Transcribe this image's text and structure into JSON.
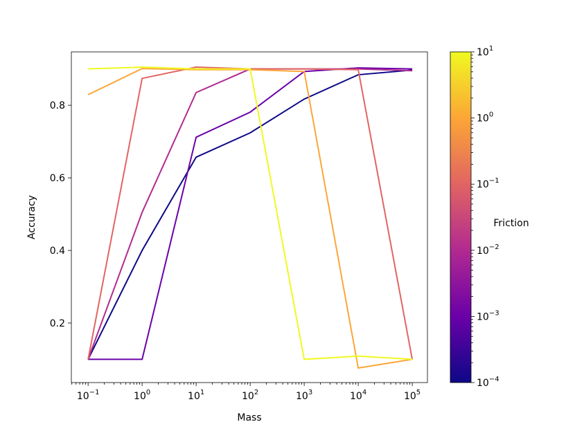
{
  "chart_data": {
    "type": "line",
    "x_label": "Mass",
    "y_label": "Accuracy",
    "x_log": true,
    "x": [
      0.1,
      1,
      10,
      100,
      1000,
      10000,
      100000
    ],
    "series": [
      {
        "color": "#0d0887",
        "values": [
          0.1,
          0.4,
          0.657,
          0.724,
          0.817,
          0.884,
          0.897
        ]
      },
      {
        "color": "#6a00a8",
        "values": [
          0.1,
          0.1,
          0.712,
          0.781,
          0.893,
          0.903,
          0.9
        ]
      },
      {
        "color": "#b12a90",
        "values": [
          0.1,
          0.505,
          0.835,
          0.9,
          0.9,
          0.9,
          0.895
        ]
      },
      {
        "color": "#e16462",
        "values": [
          0.1,
          0.874,
          0.905,
          0.9,
          0.9,
          0.898,
          0.1
        ]
      },
      {
        "color": "#fca636",
        "values": [
          0.829,
          0.901,
          0.898,
          0.898,
          0.893,
          0.076,
          0.1
        ]
      },
      {
        "color": "#f0f921",
        "values": [
          0.9,
          0.905,
          0.9,
          0.9,
          0.1,
          0.109,
          0.1
        ]
      }
    ],
    "xlim": [
      0.049,
      191000
    ],
    "ylim": [
      0.036,
      0.947
    ],
    "xticks": [
      {
        "value": 0.1,
        "label": "10",
        "exponent": "−1"
      },
      {
        "value": 1,
        "label": "10",
        "exponent": "0"
      },
      {
        "value": 10,
        "label": "10",
        "exponent": "1"
      },
      {
        "value": 100,
        "label": "10",
        "exponent": "2"
      },
      {
        "value": 1000,
        "label": "10",
        "exponent": "3"
      },
      {
        "value": 10000,
        "label": "10",
        "exponent": "4"
      },
      {
        "value": 100000,
        "label": "10",
        "exponent": "5"
      }
    ],
    "yticks": [
      0.2,
      0.4,
      0.6,
      0.8
    ],
    "colorbar": {
      "label": "Friction",
      "log": true,
      "lim": [
        0.0001,
        10
      ],
      "colors": [
        "#0d0887",
        "#6a00a8",
        "#b12a90",
        "#e16462",
        "#fca636",
        "#f0f921"
      ],
      "ticks": [
        {
          "value": 0.0001,
          "label": "10",
          "exponent": "−4"
        },
        {
          "value": 0.001,
          "label": "10",
          "exponent": "−3"
        },
        {
          "value": 0.01,
          "label": "10",
          "exponent": "−2"
        },
        {
          "value": 0.1,
          "label": "10",
          "exponent": "−1"
        },
        {
          "value": 1,
          "label": "10",
          "exponent": "0"
        },
        {
          "value": 10,
          "label": "10",
          "exponent": "1"
        }
      ]
    }
  }
}
